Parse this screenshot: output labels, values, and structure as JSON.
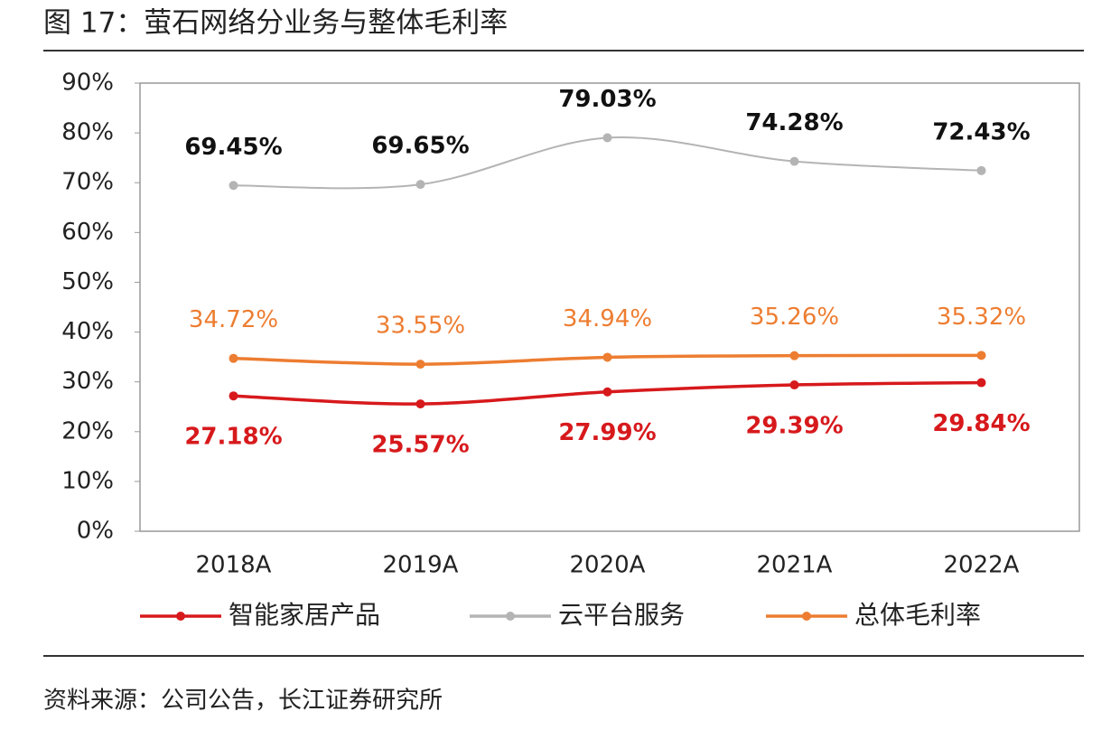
{
  "chart_data": {
    "type": "line",
    "title": "图 17：萤石网络分业务与整体毛利率",
    "source": "资料来源：公司公告，长江证券研究所",
    "categories": [
      "2018A",
      "2019A",
      "2020A",
      "2021A",
      "2022A"
    ],
    "series": [
      {
        "name": "智能家居产品",
        "color": "#d7191c",
        "values": [
          27.18,
          25.57,
          27.99,
          29.39,
          29.84
        ],
        "value_labels": [
          "27.18%",
          "25.57%",
          "27.99%",
          "29.39%",
          "29.84%"
        ],
        "label_position": "below"
      },
      {
        "name": "云平台服务",
        "color": "#b4b4b4",
        "values": [
          69.45,
          69.65,
          79.03,
          74.28,
          72.43
        ],
        "value_labels": [
          "69.45%",
          "69.65%",
          "79.03%",
          "74.28%",
          "72.43%"
        ],
        "label_position": "above"
      },
      {
        "name": "总体毛利率",
        "color": "#ed7d31",
        "values": [
          34.72,
          33.55,
          34.94,
          35.26,
          35.32
        ],
        "value_labels": [
          "34.72%",
          "33.55%",
          "34.94%",
          "35.26%",
          "35.32%"
        ],
        "label_position": "above"
      }
    ],
    "ylim": [
      0,
      90
    ],
    "yticks": [
      {
        "value": 0,
        "label": "0%"
      },
      {
        "value": 10,
        "label": "10%"
      },
      {
        "value": 20,
        "label": "20%"
      },
      {
        "value": 30,
        "label": "30%"
      },
      {
        "value": 40,
        "label": "40%"
      },
      {
        "value": 50,
        "label": "50%"
      },
      {
        "value": 60,
        "label": "60%"
      },
      {
        "value": 70,
        "label": "70%"
      },
      {
        "value": 80,
        "label": "80%"
      },
      {
        "value": 90,
        "label": "90%"
      }
    ],
    "grid": false
  }
}
